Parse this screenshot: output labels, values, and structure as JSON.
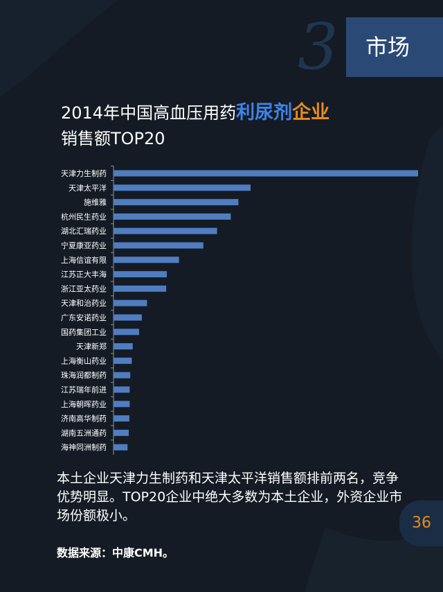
{
  "header": {
    "section_number": "3",
    "section_label": "市场"
  },
  "title": {
    "line1_prefix": "2014年中国高血压用药",
    "line1_highlight_blue": "利尿剂",
    "line1_highlight_orange": "企业",
    "line2": "销售额TOP20"
  },
  "chart_data": {
    "type": "bar",
    "orientation": "horizontal",
    "title": "",
    "xlabel": "",
    "ylabel": "",
    "grid": false,
    "categories": [
      "天津力生制药",
      "天津太平洋",
      "施维雅",
      "杭州民生药业",
      "湖北汇瑞药业",
      "宁夏康亚药业",
      "上海信谊有限",
      "江苏正大丰海",
      "浙江亚太药业",
      "天津和治药业",
      "广东安诺药业",
      "国药集团工业",
      "天津新郑",
      "上海衡山药业",
      "珠海润都制药",
      "江苏瑞年前进",
      "上海朝晖药业",
      "济南高华制药",
      "湖南五洲通药",
      "海神同洲制药"
    ],
    "values": [
      100,
      45,
      41,
      38.5,
      34,
      29.5,
      21.5,
      17.5,
      17.3,
      11,
      9.3,
      8.4,
      6.3,
      6,
      5.5,
      5.3,
      5.3,
      5.2,
      5,
      4.6
    ],
    "xlim": [
      0,
      100
    ],
    "bar_color": "#4f7dc0",
    "axis_color": "#8a95a5"
  },
  "description": "本土企业天津力生制药和天津太平洋销售额排前两名，竞争优势明显。TOP20企业中绝大多数为本土企业，外资企业市场份额极小。",
  "source": "数据来源：中康CMH。",
  "page_number": "36"
}
